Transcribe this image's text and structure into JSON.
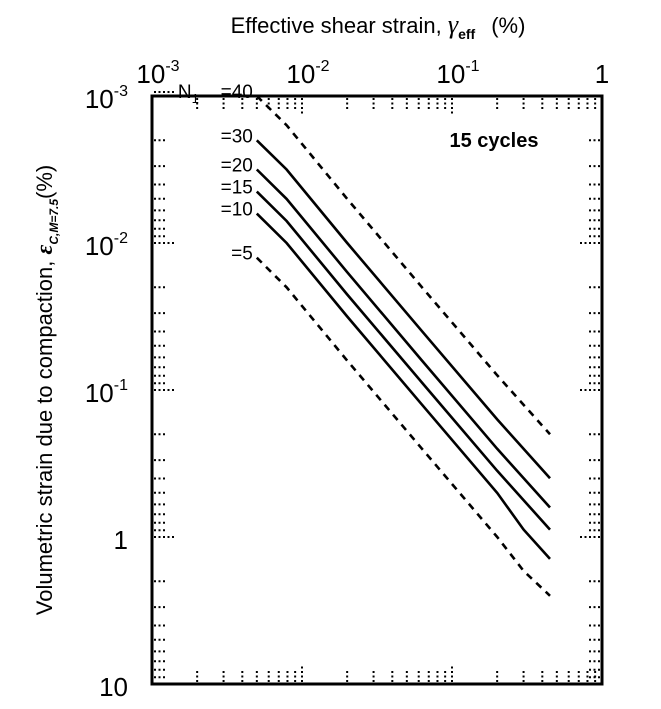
{
  "chart_data": {
    "type": "line",
    "title": "",
    "xlabel": {
      "text": "Effective shear strain, ",
      "symbol": "γ",
      "subscript": "eff",
      "unit": "(%)"
    },
    "ylabel": {
      "text": "Volumetric strain due to compaction, ",
      "symbol": "ε",
      "subscript": "C,M=7.5",
      "unit": "(%)"
    },
    "x_scale": "log",
    "y_scale": "log",
    "y_inverted": true,
    "xlim": [
      0.001,
      1
    ],
    "ylim": [
      0.001,
      10
    ],
    "x_ticks": [
      {
        "base": "10",
        "exp": "-3"
      },
      {
        "base": "10",
        "exp": "-2"
      },
      {
        "base": "10",
        "exp": "-1"
      },
      {
        "base": "1",
        "exp": ""
      }
    ],
    "y_ticks": [
      {
        "base": "10",
        "exp": "-3"
      },
      {
        "base": "10",
        "exp": "-2"
      },
      {
        "base": "10",
        "exp": "-1"
      },
      {
        "base": "1",
        "exp": ""
      },
      {
        "base": "10",
        "exp": ""
      }
    ],
    "annotation": "15 cycles",
    "legend_prefix": {
      "text": "N",
      "sub": "1"
    },
    "series": [
      {
        "name": "=40",
        "style": "dashed",
        "x": [
          0.005,
          0.0079,
          0.02,
          0.0631,
          0.2,
          0.45
        ],
        "y": [
          0.001,
          0.00158,
          0.00501,
          0.02,
          0.0794,
          0.2
        ]
      },
      {
        "name": "=30",
        "style": "solid",
        "x": [
          0.005,
          0.0079,
          0.02,
          0.0631,
          0.2,
          0.45
        ],
        "y": [
          0.002,
          0.00316,
          0.01,
          0.0398,
          0.1585,
          0.398
        ]
      },
      {
        "name": "=20",
        "style": "solid",
        "x": [
          0.005,
          0.0079,
          0.02,
          0.0631,
          0.2,
          0.45
        ],
        "y": [
          0.00316,
          0.00501,
          0.0158,
          0.0631,
          0.2512,
          0.63
        ]
      },
      {
        "name": "=15",
        "style": "solid",
        "x": [
          0.005,
          0.0079,
          0.02,
          0.0631,
          0.2,
          0.45
        ],
        "y": [
          0.00447,
          0.00708,
          0.0224,
          0.0891,
          0.3548,
          0.891
        ]
      },
      {
        "name": "=10",
        "style": "solid",
        "x": [
          0.005,
          0.0079,
          0.02,
          0.0631,
          0.2,
          0.3,
          0.45
        ],
        "y": [
          0.00631,
          0.01,
          0.0316,
          0.1259,
          0.5012,
          0.89,
          1.41
        ]
      },
      {
        "name": "=5",
        "style": "dashed",
        "x": [
          0.005,
          0.0079,
          0.02,
          0.0631,
          0.2,
          0.3,
          0.45
        ],
        "y": [
          0.01259,
          0.02,
          0.0631,
          0.2512,
          1.0,
          1.7,
          2.51
        ]
      }
    ],
    "grid": "minor tick dashes only",
    "legend_placement": "inline-left"
  }
}
